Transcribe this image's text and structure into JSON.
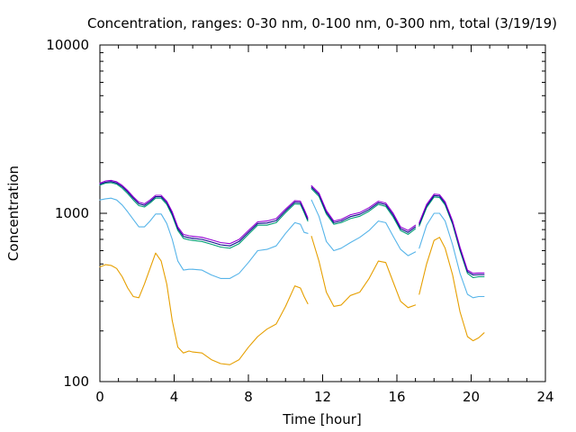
{
  "chart_data": {
    "type": "line",
    "title": "Concentration, ranges: 0-30 nm, 0-100 nm, 0-300 nm, total (3/19/19)",
    "xlabel": "Time [hour]",
    "ylabel": "Concentration",
    "xlim": [
      0,
      24
    ],
    "ylim": [
      100,
      10000
    ],
    "y_scale": "log",
    "x_ticks": [
      0,
      4,
      8,
      12,
      16,
      20,
      24
    ],
    "x_tick_labels": [
      "0",
      "4",
      "8",
      "12",
      "16",
      "20",
      "24"
    ],
    "y_ticks": [
      100,
      1000,
      10000
    ],
    "y_tick_labels": [
      "100",
      "1000",
      "10000"
    ],
    "grid": false,
    "legend": false,
    "series": [
      {
        "color": "#e69f00",
        "segments": [
          {
            "x": [
              0,
              0.3,
              0.6,
              0.9,
              1.2,
              1.5,
              1.8,
              2.1,
              2.4,
              2.7,
              3.0,
              3.3,
              3.6,
              3.9,
              4.2,
              4.5,
              4.8,
              5.0
            ],
            "y": [
              480,
              495,
              490,
              470,
              420,
              360,
              320,
              315,
              380,
              470,
              580,
              520,
              380,
              230,
              160,
              148,
              152,
              150
            ]
          },
          {
            "x": [
              5.0,
              5.5,
              6.0,
              6.5,
              7.0,
              7.5,
              8.0,
              8.5,
              9.0,
              9.5,
              10.0,
              10.5,
              10.8,
              11.0,
              11.2
            ],
            "y": [
              150,
              148,
              135,
              128,
              126,
              135,
              160,
              185,
              205,
              220,
              280,
              370,
              360,
              320,
              290
            ]
          },
          {
            "x": [
              11.4,
              11.8,
              12.2,
              12.6,
              13.0,
              13.5,
              14.0,
              14.5,
              15.0,
              15.4,
              15.8,
              16.2,
              16.6,
              17.0
            ],
            "y": [
              730,
              520,
              340,
              280,
              285,
              325,
              340,
              410,
              520,
              510,
              390,
              300,
              275,
              285
            ]
          },
          {
            "x": [
              17.2,
              17.6,
              18.0,
              18.3,
              18.6,
              19.0,
              19.4,
              19.8,
              20.1,
              20.4,
              20.7
            ],
            "y": [
              330,
              500,
              690,
              720,
              620,
              430,
              260,
              185,
              175,
              182,
              195
            ]
          }
        ]
      },
      {
        "color": "#56b4e9",
        "segments": [
          {
            "x": [
              0,
              0.3,
              0.6,
              0.9,
              1.2,
              1.5,
              1.8,
              2.1,
              2.4,
              2.7,
              3.0,
              3.3,
              3.6,
              3.9,
              4.2,
              4.5,
              4.8,
              5.0
            ],
            "y": [
              1200,
              1220,
              1230,
              1200,
              1120,
              1020,
              920,
              830,
              830,
              900,
              990,
              990,
              870,
              700,
              520,
              460,
              465,
              465
            ]
          },
          {
            "x": [
              5.0,
              5.5,
              6.0,
              6.5,
              7.0,
              7.5,
              8.0,
              8.5,
              9.0,
              9.5,
              10.0,
              10.5,
              10.8,
              11.0,
              11.2
            ],
            "y": [
              465,
              460,
              430,
              410,
              410,
              440,
              510,
              600,
              610,
              640,
              760,
              880,
              860,
              770,
              760
            ]
          },
          {
            "x": [
              11.4,
              11.8,
              12.2,
              12.6,
              13.0,
              13.5,
              14.0,
              14.5,
              15.0,
              15.4,
              15.8,
              16.2,
              16.6,
              17.0
            ],
            "y": [
              1200,
              960,
              680,
              600,
              620,
              670,
              720,
              790,
              900,
              880,
              730,
              610,
              560,
              590
            ]
          },
          {
            "x": [
              17.2,
              17.6,
              18.0,
              18.3,
              18.6,
              19.0,
              19.4,
              19.8,
              20.1,
              20.4,
              20.7
            ],
            "y": [
              620,
              850,
              1000,
              1000,
              900,
              650,
              440,
              330,
              315,
              320,
              320
            ]
          }
        ]
      },
      {
        "color": "#009e73",
        "segments": [
          {
            "x": [
              0,
              0.3,
              0.6,
              0.9,
              1.2,
              1.5,
              1.8,
              2.1,
              2.4,
              2.7,
              3.0,
              3.3,
              3.6,
              3.9,
              4.2,
              4.5,
              4.8,
              5.0
            ],
            "y": [
              1470,
              1510,
              1520,
              1490,
              1410,
              1310,
              1200,
              1110,
              1090,
              1150,
              1230,
              1230,
              1130,
              970,
              790,
              710,
              695,
              690
            ]
          },
          {
            "x": [
              5.0,
              5.5,
              6.0,
              6.5,
              7.0,
              7.5,
              8.0,
              8.5,
              9.0,
              9.5,
              10.0,
              10.5,
              10.8,
              11.0,
              11.2
            ],
            "y": [
              690,
              680,
              655,
              630,
              620,
              660,
              750,
              850,
              850,
              880,
              1010,
              1140,
              1130,
              1010,
              900
            ]
          },
          {
            "x": [
              11.4,
              11.8,
              12.2,
              12.6,
              13.0,
              13.5,
              14.0,
              14.5,
              15.0,
              15.4,
              15.8,
              16.2,
              16.6,
              17.0
            ],
            "y": [
              1400,
              1260,
              990,
              860,
              880,
              930,
              960,
              1030,
              1130,
              1100,
              950,
              790,
              750,
              810
            ]
          },
          {
            "x": [
              17.2,
              17.6,
              18.0,
              18.3,
              18.6,
              19.0,
              19.4,
              19.8,
              20.1,
              20.4,
              20.7
            ],
            "y": [
              840,
              1080,
              1250,
              1240,
              1120,
              860,
              600,
              440,
              415,
              420,
              420
            ]
          }
        ]
      },
      {
        "color": "#0a0a8c",
        "segments": [
          {
            "x": [
              0,
              0.3,
              0.6,
              0.9,
              1.2,
              1.5,
              1.8,
              2.1,
              2.4,
              2.7,
              3.0,
              3.3,
              3.6,
              3.9,
              4.2,
              4.5,
              4.8,
              5.0
            ],
            "y": [
              1490,
              1530,
              1545,
              1515,
              1440,
              1340,
              1230,
              1140,
              1115,
              1175,
              1255,
              1255,
              1155,
              995,
              810,
              730,
              715,
              710
            ]
          },
          {
            "x": [
              5.0,
              5.5,
              6.0,
              6.5,
              7.0,
              7.5,
              8.0,
              8.5,
              9.0,
              9.5,
              10.0,
              10.5,
              10.8,
              11.0,
              11.2
            ],
            "y": [
              710,
              700,
              675,
              650,
              640,
              680,
              770,
              870,
              875,
              905,
              1035,
              1165,
              1155,
              1035,
              920
            ]
          },
          {
            "x": [
              11.4,
              11.8,
              12.2,
              12.6,
              13.0,
              13.5,
              14.0,
              14.5,
              15.0,
              15.4,
              15.8,
              16.2,
              16.6,
              17.0
            ],
            "y": [
              1430,
              1290,
              1015,
              880,
              900,
              955,
              985,
              1055,
              1155,
              1125,
              975,
              810,
              770,
              830
            ]
          },
          {
            "x": [
              17.2,
              17.6,
              18.0,
              18.3,
              18.6,
              19.0,
              19.4,
              19.8,
              20.1,
              20.4,
              20.7
            ],
            "y": [
              860,
              1105,
              1275,
              1265,
              1145,
              880,
              615,
              450,
              430,
              432,
              432
            ]
          }
        ]
      },
      {
        "color": "#9400d3",
        "segments": [
          {
            "x": [
              0,
              0.3,
              0.6,
              0.9,
              1.2,
              1.5,
              1.8,
              2.1,
              2.4,
              2.7,
              3.0,
              3.3,
              3.6,
              3.9,
              4.2,
              4.5,
              4.8,
              5.0
            ],
            "y": [
              1510,
              1555,
              1570,
              1540,
              1465,
              1365,
              1255,
              1165,
              1140,
              1200,
              1280,
              1280,
              1180,
              1020,
              830,
              750,
              735,
              730
            ]
          },
          {
            "x": [
              5.0,
              5.5,
              6.0,
              6.5,
              7.0,
              7.5,
              8.0,
              8.5,
              9.0,
              9.5,
              10.0,
              10.5,
              10.8,
              11.0,
              11.2
            ],
            "y": [
              730,
              720,
              695,
              670,
              660,
              700,
              790,
              890,
              900,
              930,
              1060,
              1190,
              1180,
              1060,
              940
            ]
          },
          {
            "x": [
              11.4,
              11.8,
              12.2,
              12.6,
              13.0,
              13.5,
              14.0,
              14.5,
              15.0,
              15.4,
              15.8,
              16.2,
              16.6,
              17.0
            ],
            "y": [
              1460,
              1320,
              1040,
              900,
              920,
              980,
              1010,
              1080,
              1180,
              1150,
              1000,
              830,
              790,
              850
            ]
          },
          {
            "x": [
              17.2,
              17.6,
              18.0,
              18.3,
              18.6,
              19.0,
              19.4,
              19.8,
              20.1,
              20.4,
              20.7
            ],
            "y": [
              880,
              1130,
              1300,
              1290,
              1170,
              900,
              630,
              460,
              440,
              442,
              442
            ]
          }
        ]
      }
    ]
  }
}
